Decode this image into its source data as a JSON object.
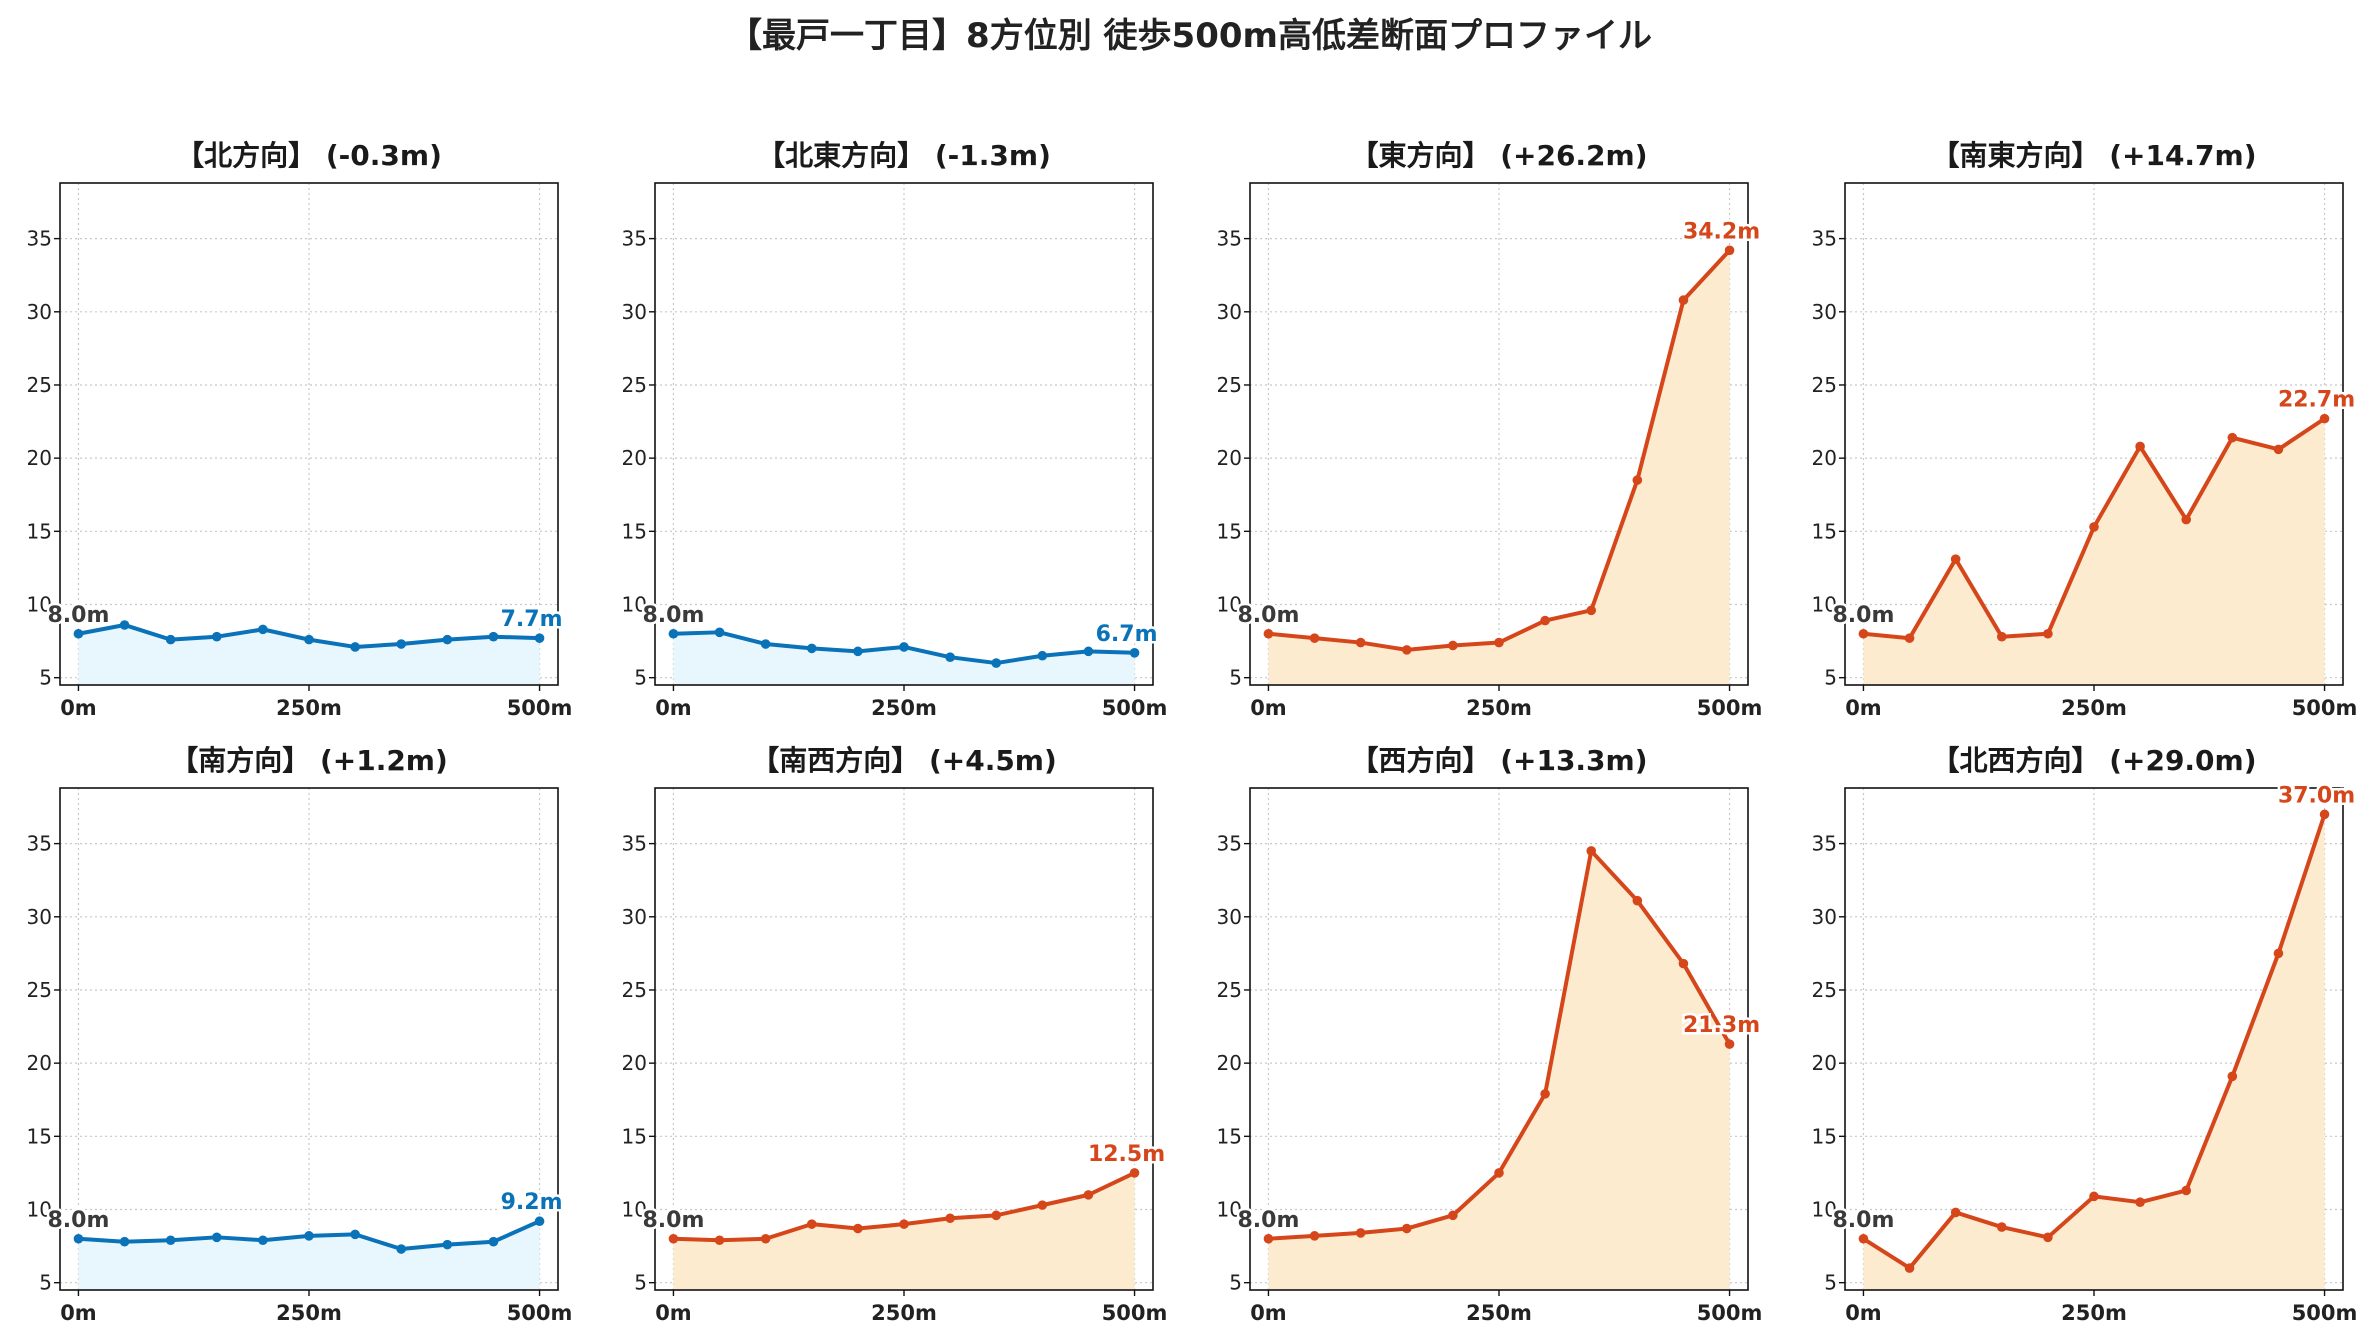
{
  "title": "【最戸一丁目】8方位別 徒歩500m高低差断面プロファイル",
  "colors": {
    "down_line": "#0a72b8",
    "down_fill": "#e8f6fd",
    "up_line": "#d6461b",
    "up_fill": "#fdebd0",
    "start_label": "#3a3a3a",
    "grid": "#c8c8c8"
  },
  "chart_data": [
    {
      "type": "area",
      "title": "【北方向】 (-0.3m)",
      "trend": "down",
      "x": [
        0,
        50,
        100,
        150,
        200,
        250,
        300,
        350,
        400,
        450,
        500
      ],
      "y": [
        8.0,
        8.6,
        7.6,
        7.8,
        8.3,
        7.6,
        7.1,
        7.3,
        7.6,
        7.8,
        7.7
      ],
      "start_label": "8.0m",
      "end_label": "7.7m",
      "xticks": [
        "0m",
        "250m",
        "500m"
      ],
      "yticks": [
        "5",
        "10",
        "15",
        "20",
        "25",
        "30",
        "35"
      ],
      "ylim": [
        4.5,
        38.8
      ],
      "grid": true
    },
    {
      "type": "area",
      "title": "【北東方向】 (-1.3m)",
      "trend": "down",
      "x": [
        0,
        50,
        100,
        150,
        200,
        250,
        300,
        350,
        400,
        450,
        500
      ],
      "y": [
        8.0,
        8.1,
        7.3,
        7.0,
        6.8,
        7.1,
        6.4,
        6.0,
        6.5,
        6.8,
        6.7
      ],
      "start_label": "8.0m",
      "end_label": "6.7m",
      "xticks": [
        "0m",
        "250m",
        "500m"
      ],
      "yticks": [
        "5",
        "10",
        "15",
        "20",
        "25",
        "30",
        "35"
      ],
      "ylim": [
        4.5,
        38.8
      ],
      "grid": true
    },
    {
      "type": "area",
      "title": "【東方向】 (+26.2m)",
      "trend": "up",
      "x": [
        0,
        50,
        100,
        150,
        200,
        250,
        300,
        350,
        400,
        450,
        500
      ],
      "y": [
        8.0,
        7.7,
        7.4,
        6.9,
        7.2,
        7.4,
        8.9,
        9.6,
        18.5,
        30.8,
        34.2
      ],
      "start_label": "8.0m",
      "end_label": "34.2m",
      "xticks": [
        "0m",
        "250m",
        "500m"
      ],
      "yticks": [
        "5",
        "10",
        "15",
        "20",
        "25",
        "30",
        "35"
      ],
      "ylim": [
        4.5,
        38.8
      ],
      "grid": true
    },
    {
      "type": "area",
      "title": "【南東方向】 (+14.7m)",
      "trend": "up",
      "x": [
        0,
        50,
        100,
        150,
        200,
        250,
        300,
        350,
        400,
        450,
        500
      ],
      "y": [
        8.0,
        7.7,
        13.1,
        7.8,
        8.0,
        15.3,
        20.8,
        15.8,
        21.4,
        20.6,
        22.7
      ],
      "start_label": "8.0m",
      "end_label": "22.7m",
      "xticks": [
        "0m",
        "250m",
        "500m"
      ],
      "yticks": [
        "5",
        "10",
        "15",
        "20",
        "25",
        "30",
        "35"
      ],
      "ylim": [
        4.5,
        38.8
      ],
      "grid": true
    },
    {
      "type": "area",
      "title": "【南方向】 (+1.2m)",
      "trend": "down",
      "x": [
        0,
        50,
        100,
        150,
        200,
        250,
        300,
        350,
        400,
        450,
        500
      ],
      "y": [
        8.0,
        7.8,
        7.9,
        8.1,
        7.9,
        8.2,
        8.3,
        7.3,
        7.6,
        7.8,
        9.2
      ],
      "start_label": "8.0m",
      "end_label": "9.2m",
      "xticks": [
        "0m",
        "250m",
        "500m"
      ],
      "yticks": [
        "5",
        "10",
        "15",
        "20",
        "25",
        "30",
        "35"
      ],
      "ylim": [
        4.5,
        38.8
      ],
      "grid": true
    },
    {
      "type": "area",
      "title": "【南西方向】 (+4.5m)",
      "trend": "up",
      "x": [
        0,
        50,
        100,
        150,
        200,
        250,
        300,
        350,
        400,
        450,
        500
      ],
      "y": [
        8.0,
        7.9,
        8.0,
        9.0,
        8.7,
        9.0,
        9.4,
        9.6,
        10.3,
        11.0,
        12.5
      ],
      "start_label": "8.0m",
      "end_label": "12.5m",
      "xticks": [
        "0m",
        "250m",
        "500m"
      ],
      "yticks": [
        "5",
        "10",
        "15",
        "20",
        "25",
        "30",
        "35"
      ],
      "ylim": [
        4.5,
        38.8
      ],
      "grid": true
    },
    {
      "type": "area",
      "title": "【西方向】 (+13.3m)",
      "trend": "up",
      "x": [
        0,
        50,
        100,
        150,
        200,
        250,
        300,
        350,
        400,
        450,
        500
      ],
      "y": [
        8.0,
        8.2,
        8.4,
        8.7,
        9.6,
        12.5,
        17.9,
        34.5,
        31.1,
        26.8,
        21.3
      ],
      "start_label": "8.0m",
      "end_label": "21.3m",
      "xticks": [
        "0m",
        "250m",
        "500m"
      ],
      "yticks": [
        "5",
        "10",
        "15",
        "20",
        "25",
        "30",
        "35"
      ],
      "ylim": [
        4.5,
        38.8
      ],
      "grid": true
    },
    {
      "type": "area",
      "title": "【北西方向】 (+29.0m)",
      "trend": "up",
      "x": [
        0,
        50,
        100,
        150,
        200,
        250,
        300,
        350,
        400,
        450,
        500
      ],
      "y": [
        8.0,
        6.0,
        9.8,
        8.8,
        8.1,
        10.9,
        10.5,
        11.3,
        19.1,
        27.5,
        37.0
      ],
      "start_label": "8.0m",
      "end_label": "37.0m",
      "xticks": [
        "0m",
        "250m",
        "500m"
      ],
      "yticks": [
        "5",
        "10",
        "15",
        "20",
        "25",
        "30",
        "35"
      ],
      "ylim": [
        4.5,
        38.8
      ],
      "grid": true
    }
  ]
}
